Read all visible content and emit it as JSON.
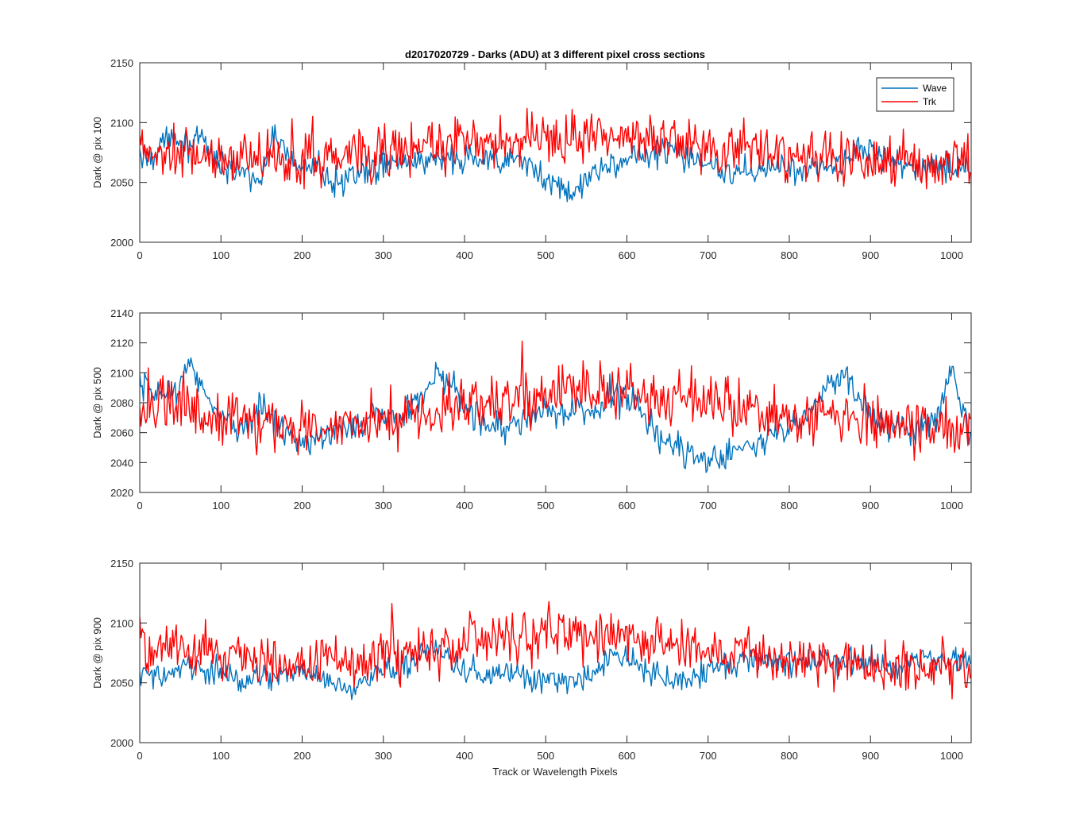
{
  "figure": {
    "title": "d2017020729 - Darks (ADU) at 3 different pixel cross sections",
    "xlabel": "Track or Wavelength Pixels"
  },
  "chart_data": [
    {
      "type": "line",
      "ylabel": "Dark @ pix 100",
      "xlim": [
        0,
        1024
      ],
      "ylim": [
        2000,
        2150
      ],
      "xticks": [
        0,
        100,
        200,
        300,
        400,
        500,
        600,
        700,
        800,
        900,
        1000
      ],
      "yticks": [
        2000,
        2050,
        2100,
        2150
      ],
      "legend": {
        "placement": "top-right",
        "entries": [
          "Wave",
          "Trk"
        ]
      },
      "series": [
        {
          "name": "Wave",
          "color": "#0072BD",
          "x": [
            0,
            20,
            40,
            60,
            80,
            100,
            120,
            140,
            150,
            165,
            180,
            200,
            220,
            250,
            280,
            300,
            320,
            350,
            380,
            400,
            420,
            440,
            460,
            480,
            500,
            520,
            540,
            560,
            580,
            600,
            620,
            650,
            680,
            700,
            720,
            740,
            760,
            780,
            800,
            820,
            840,
            860,
            880,
            900,
            920,
            940,
            960,
            980,
            1000,
            1024
          ],
          "y": [
            2070,
            2075,
            2092,
            2082,
            2080,
            2065,
            2060,
            2055,
            2052,
            2090,
            2072,
            2065,
            2062,
            2050,
            2058,
            2065,
            2068,
            2070,
            2066,
            2068,
            2072,
            2070,
            2066,
            2064,
            2050,
            2044,
            2043,
            2058,
            2066,
            2070,
            2072,
            2076,
            2072,
            2068,
            2062,
            2056,
            2060,
            2062,
            2064,
            2062,
            2063,
            2065,
            2080,
            2078,
            2070,
            2064,
            2060,
            2062,
            2060,
            2063
          ],
          "noise": 8
        },
        {
          "name": "Trk",
          "color": "#FF0000",
          "x": [
            0,
            50,
            100,
            150,
            200,
            250,
            300,
            350,
            400,
            450,
            500,
            550,
            600,
            650,
            700,
            750,
            800,
            850,
            900,
            950,
            1000,
            1024
          ],
          "y": [
            2075,
            2072,
            2070,
            2068,
            2070,
            2072,
            2075,
            2078,
            2085,
            2082,
            2088,
            2086,
            2090,
            2088,
            2082,
            2078,
            2072,
            2070,
            2068,
            2066,
            2066,
            2065
          ],
          "noise": 14
        }
      ]
    },
    {
      "type": "line",
      "ylabel": "Dark @ pix 500",
      "xlim": [
        0,
        1024
      ],
      "ylim": [
        2020,
        2140
      ],
      "xticks": [
        0,
        100,
        200,
        300,
        400,
        500,
        600,
        700,
        800,
        900,
        1000
      ],
      "yticks": [
        2020,
        2040,
        2060,
        2080,
        2100,
        2120,
        2140
      ],
      "legend": null,
      "series": [
        {
          "name": "Wave",
          "color": "#0072BD",
          "x": [
            0,
            20,
            40,
            60,
            80,
            100,
            120,
            150,
            180,
            200,
            220,
            250,
            280,
            300,
            320,
            350,
            370,
            400,
            420,
            450,
            480,
            500,
            530,
            560,
            580,
            600,
            620,
            650,
            680,
            700,
            720,
            750,
            780,
            800,
            820,
            840,
            870,
            900,
            920,
            950,
            980,
            1000,
            1024
          ],
          "y": [
            2090,
            2085,
            2088,
            2102,
            2090,
            2070,
            2062,
            2075,
            2065,
            2050,
            2055,
            2062,
            2070,
            2072,
            2070,
            2085,
            2100,
            2080,
            2068,
            2062,
            2070,
            2075,
            2072,
            2078,
            2082,
            2085,
            2068,
            2052,
            2045,
            2040,
            2045,
            2048,
            2060,
            2062,
            2068,
            2090,
            2095,
            2070,
            2065,
            2062,
            2068,
            2105,
            2055
          ],
          "noise": 7
        },
        {
          "name": "Trk",
          "color": "#FF0000",
          "x": [
            0,
            50,
            100,
            150,
            200,
            250,
            300,
            350,
            400,
            450,
            500,
            550,
            600,
            650,
            700,
            750,
            800,
            850,
            900,
            950,
            1000,
            1024
          ],
          "y": [
            2078,
            2075,
            2070,
            2066,
            2062,
            2062,
            2068,
            2072,
            2078,
            2082,
            2085,
            2088,
            2090,
            2085,
            2080,
            2075,
            2070,
            2068,
            2066,
            2064,
            2062,
            2062
          ],
          "noise": 12
        }
      ]
    },
    {
      "type": "line",
      "ylabel": "Dark @ pix 900",
      "xlim": [
        0,
        1024
      ],
      "ylim": [
        2000,
        2150
      ],
      "xticks": [
        0,
        100,
        200,
        300,
        400,
        500,
        600,
        700,
        800,
        900,
        1000
      ],
      "yticks": [
        2000,
        2050,
        2100,
        2150
      ],
      "legend": null,
      "series": [
        {
          "name": "Wave",
          "color": "#0072BD",
          "x": [
            0,
            30,
            60,
            100,
            130,
            160,
            200,
            230,
            260,
            300,
            330,
            360,
            380,
            400,
            430,
            460,
            500,
            530,
            560,
            580,
            600,
            630,
            660,
            700,
            730,
            760,
            800,
            830,
            860,
            900,
            930,
            960,
            1000,
            1024
          ],
          "y": [
            2058,
            2055,
            2062,
            2060,
            2052,
            2055,
            2060,
            2052,
            2045,
            2060,
            2065,
            2080,
            2072,
            2060,
            2055,
            2058,
            2052,
            2050,
            2058,
            2075,
            2070,
            2058,
            2050,
            2062,
            2065,
            2068,
            2065,
            2070,
            2068,
            2065,
            2062,
            2068,
            2070,
            2068
          ],
          "noise": 7
        },
        {
          "name": "Trk",
          "color": "#FF0000",
          "x": [
            0,
            50,
            100,
            150,
            200,
            250,
            300,
            350,
            400,
            450,
            500,
            550,
            600,
            650,
            700,
            750,
            800,
            850,
            900,
            950,
            1000,
            1024
          ],
          "y": [
            2080,
            2078,
            2075,
            2070,
            2068,
            2066,
            2070,
            2075,
            2082,
            2085,
            2090,
            2092,
            2090,
            2085,
            2078,
            2072,
            2068,
            2065,
            2063,
            2062,
            2062,
            2062
          ],
          "noise": 14
        }
      ]
    }
  ]
}
